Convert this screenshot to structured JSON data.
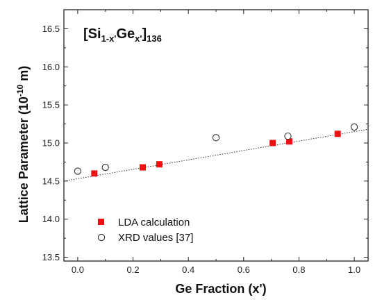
{
  "chart_data": {
    "type": "scatter",
    "xlabel": "Ge Fraction (x')",
    "ylabel_main": "Lattice Parameter (10",
    "ylabel_exp": "-10",
    "ylabel_unit": " m)",
    "xlim": [
      -0.05,
      1.05
    ],
    "ylim": [
      13.45,
      16.75
    ],
    "xticks": [
      "0.0",
      "0.2",
      "0.4",
      "0.6",
      "0.8",
      "1.0"
    ],
    "yticks": [
      "13.5",
      "14.0",
      "14.5",
      "15.0",
      "15.5",
      "16.0",
      "16.5"
    ],
    "annotation": {
      "open": "[Si",
      "sub1": "1-x'",
      "mid": "Ge",
      "sub2": "x'",
      "close": "]",
      "sub3": "136"
    },
    "legend_position": "bottom-left",
    "series": [
      {
        "name": "LDA calculation",
        "marker": "filled-square",
        "color": "#ee1111",
        "points": [
          {
            "x": 0.06,
            "y": 14.6
          },
          {
            "x": 0.235,
            "y": 14.68
          },
          {
            "x": 0.295,
            "y": 14.72
          },
          {
            "x": 0.705,
            "y": 15.0
          },
          {
            "x": 0.765,
            "y": 15.02
          },
          {
            "x": 0.94,
            "y": 15.12
          }
        ]
      },
      {
        "name": "XRD values [37]",
        "marker": "open-circle",
        "color": "#333333",
        "points": [
          {
            "x": 0.0,
            "y": 14.63
          },
          {
            "x": 0.1,
            "y": 14.68
          },
          {
            "x": 0.5,
            "y": 15.07
          },
          {
            "x": 0.76,
            "y": 15.09
          },
          {
            "x": 1.0,
            "y": 15.21
          }
        ]
      }
    ],
    "fit_line": {
      "style": "dotted",
      "x": [
        -0.05,
        1.05
      ],
      "y": [
        14.5,
        15.18
      ]
    }
  }
}
